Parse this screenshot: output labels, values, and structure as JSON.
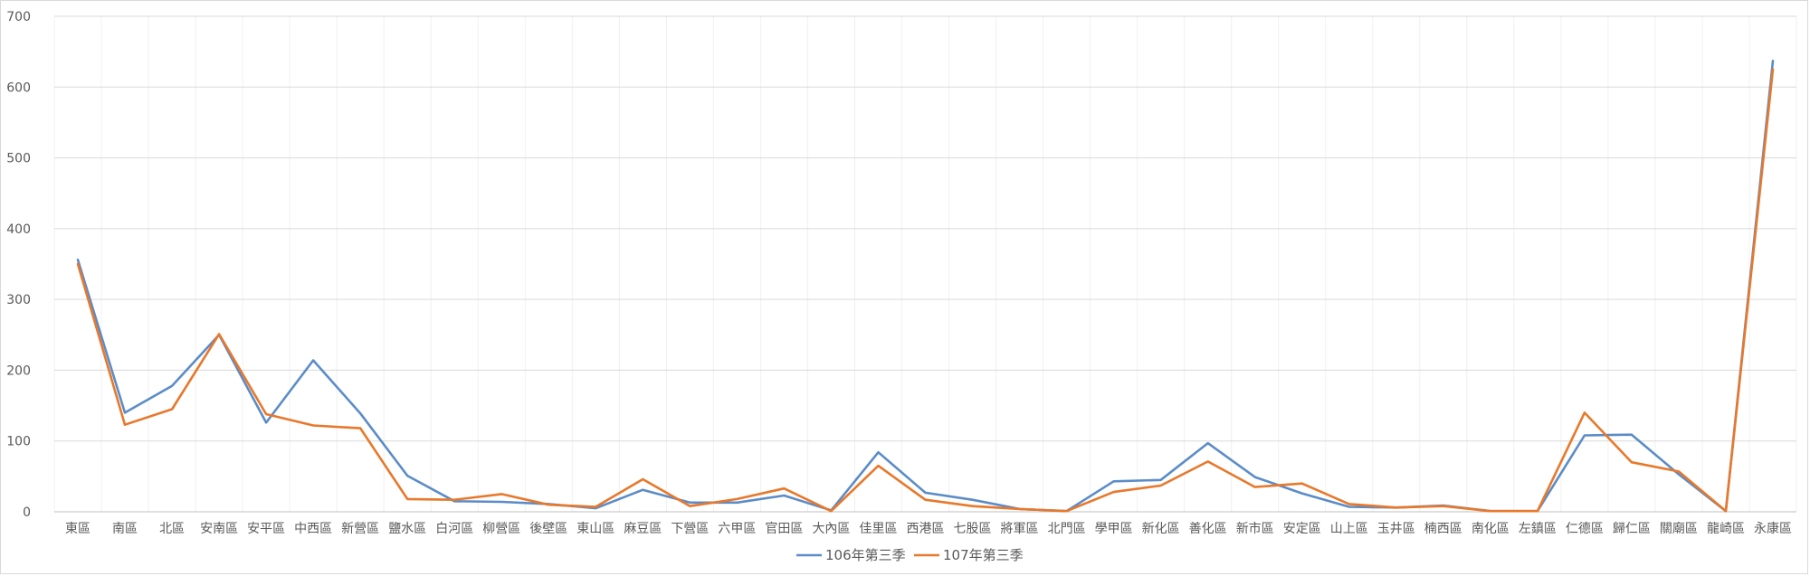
{
  "chart_data": {
    "type": "line",
    "title": "",
    "xlabel": "",
    "ylabel": "",
    "ylim": [
      0,
      700
    ],
    "yticks": [
      0,
      100,
      200,
      300,
      400,
      500,
      600,
      700
    ],
    "grid": true,
    "legend_position": "bottom",
    "categories": [
      "東區",
      "南區",
      "北區",
      "安南區",
      "安平區",
      "中西區",
      "新營區",
      "鹽水區",
      "白河區",
      "柳營區",
      "後壁區",
      "東山區",
      "麻豆區",
      "下營區",
      "六甲區",
      "官田區",
      "大內區",
      "佳里區",
      "西港區",
      "七股區",
      "將軍區",
      "北門區",
      "學甲區",
      "新化區",
      "善化區",
      "新市區",
      "安定區",
      "山上區",
      "玉井區",
      "楠西區",
      "南化區",
      "左鎮區",
      "仁德區",
      "歸仁區",
      "關廟區",
      "龍崎區",
      "永康區"
    ],
    "series": [
      {
        "name": "106年第三季",
        "color": "#5B8CC8",
        "values": [
          356,
          140,
          178,
          250,
          126,
          214,
          139,
          51,
          15,
          14,
          11,
          5,
          31,
          13,
          13,
          23,
          2,
          84,
          27,
          17,
          4,
          1,
          43,
          45,
          97,
          49,
          26,
          7,
          6,
          9,
          1,
          1,
          108,
          109,
          53,
          1,
          637
        ]
      },
      {
        "name": "107年第三季",
        "color": "#E8782B",
        "values": [
          350,
          123,
          145,
          251,
          138,
          122,
          118,
          18,
          17,
          25,
          10,
          7,
          46,
          8,
          18,
          33,
          1,
          65,
          17,
          8,
          4,
          1,
          28,
          37,
          71,
          35,
          40,
          11,
          6,
          8,
          1,
          1,
          140,
          70,
          57,
          1,
          625
        ]
      }
    ]
  }
}
